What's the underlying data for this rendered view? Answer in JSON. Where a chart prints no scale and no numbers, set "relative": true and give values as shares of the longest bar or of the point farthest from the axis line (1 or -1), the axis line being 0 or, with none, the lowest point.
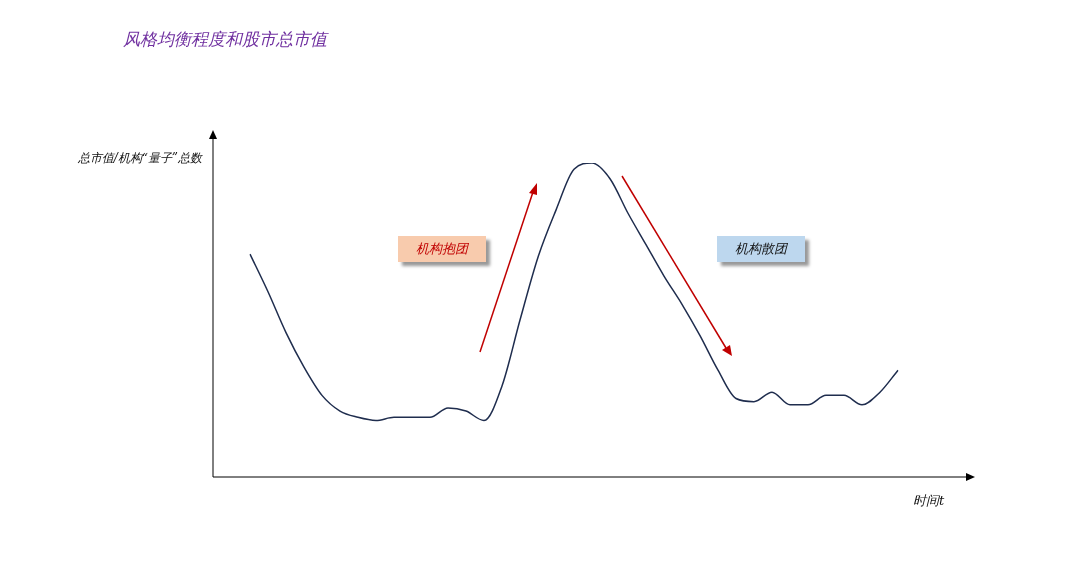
{
  "chart_data": {
    "type": "line",
    "title": "风格均衡程度和股市总市值",
    "xlabel": "时间t",
    "ylabel": "总市值/机构“量子”总数",
    "relative": true,
    "categories": [
      null,
      null,
      null,
      null,
      null,
      null,
      null,
      null,
      null,
      null,
      null,
      null,
      null,
      null,
      null,
      null,
      null,
      null,
      null,
      null,
      null,
      null,
      null,
      null,
      null,
      null,
      null,
      null,
      null,
      null,
      null,
      null,
      null,
      null,
      null,
      null,
      null
    ],
    "series": [
      {
        "color": "#1f2d4e",
        "values": [
          0.71,
          0.59,
          0.46,
          0.35,
          0.26,
          0.21,
          0.19,
          0.18,
          0.19,
          0.19,
          0.19,
          0.22,
          0.21,
          0.18,
          0.29,
          0.5,
          0.7,
          0.85,
          0.98,
          1,
          0.95,
          0.84,
          0.74,
          0.64,
          0.55,
          0.45,
          0.34,
          0.25,
          0.24,
          0.27,
          0.23,
          0.23,
          0.26,
          0.26,
          0.23,
          0.27,
          0.34
        ]
      }
    ],
    "annotations": [
      "机构抱团",
      "机构散团"
    ]
  }
}
